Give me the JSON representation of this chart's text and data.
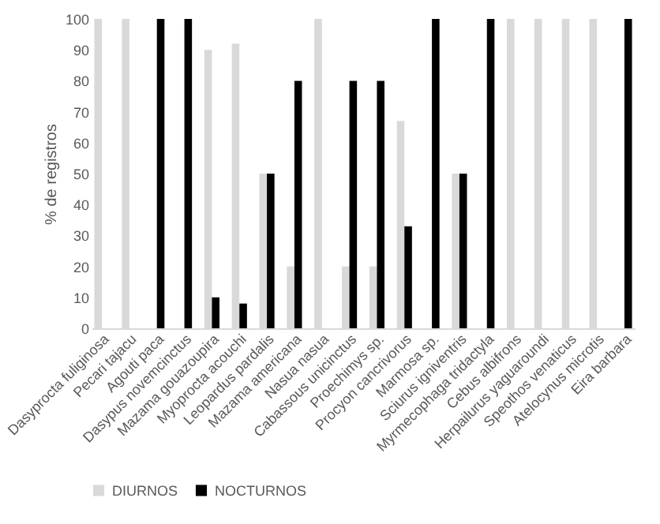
{
  "chart_data": {
    "type": "bar",
    "ylabel": "% de registros",
    "categories": [
      "Dasyprocta fuliginosa",
      "Pecari tajacu",
      "Agouti paca",
      "Dasypus novemcinctus",
      "Mazama gouazoupira",
      "Myoprocta acouchi",
      "Leopardus pardalis",
      "Mazama americana",
      "Nasua nasua",
      "Cabassous unicinctus",
      "Proechimys sp.",
      "Procyon cancrivorus",
      "Marmosa sp.",
      "Sciurus igniventris",
      "Myrmecophaga tridactyla",
      "Cebus albifrons",
      "Herpailurus yaguaroundi",
      "Speothos venaticus",
      "Atelocynus microtis",
      "Eira barbara"
    ],
    "series": [
      {
        "name": "DIURNOS",
        "color": "#d9d9d9",
        "values": [
          100,
          100,
          0,
          0,
          90,
          92,
          50,
          20,
          100,
          20,
          20,
          67,
          0,
          50,
          0,
          100,
          100,
          100,
          100,
          0
        ]
      },
      {
        "name": "NOCTURNOS",
        "color": "#000000",
        "values": [
          0,
          0,
          100,
          100,
          10,
          8,
          50,
          80,
          0,
          80,
          80,
          33,
          100,
          50,
          100,
          0,
          0,
          0,
          0,
          100
        ]
      }
    ],
    "ylim": [
      0,
      100
    ],
    "yticks": [
      0,
      10,
      20,
      30,
      40,
      50,
      60,
      70,
      80,
      90,
      100
    ],
    "grid": false,
    "legend": "bottom"
  }
}
